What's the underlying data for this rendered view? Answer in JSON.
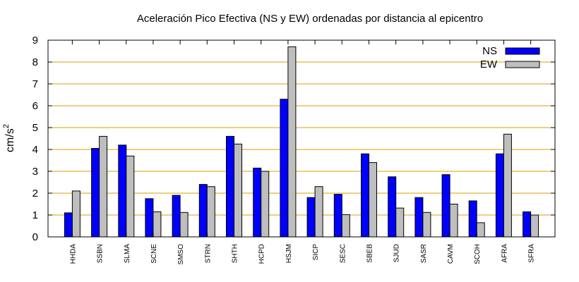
{
  "chart_data": {
    "type": "bar",
    "title": "Aceleración Pico Efectiva (NS y EW) ordenadas por distancia al epicentro",
    "xlabel": "",
    "ylabel": "cm/s",
    "ylabel_superscript": "2",
    "ylim": [
      0,
      9
    ],
    "yticks": [
      "0",
      "1",
      "2",
      "3",
      "4",
      "5",
      "6",
      "7",
      "8",
      "9"
    ],
    "grid": "horizontal",
    "legend_position": "top-right",
    "categories": [
      "HHDA",
      "SSBN",
      "SLMA",
      "SCNE",
      "SMSO",
      "STRN",
      "SHTH",
      "HCPD",
      "HSJM",
      "SICP",
      "SESC",
      "SBEB",
      "SJUD",
      "SASR",
      "CAVM",
      "SCOH",
      "AFRA",
      "SFRA"
    ],
    "series": [
      {
        "name": "NS",
        "color": "#0000ff",
        "values": [
          1.1,
          4.05,
          4.2,
          1.75,
          1.9,
          2.4,
          4.6,
          3.15,
          6.3,
          1.8,
          1.95,
          3.8,
          2.75,
          1.8,
          2.85,
          1.65,
          3.8,
          1.15
        ]
      },
      {
        "name": "EW",
        "color": "#bebebe",
        "values": [
          2.1,
          4.6,
          3.7,
          1.15,
          1.12,
          2.3,
          4.25,
          3.0,
          8.7,
          2.3,
          1.02,
          3.4,
          1.32,
          1.12,
          1.5,
          0.65,
          4.7,
          1.0
        ]
      }
    ]
  }
}
